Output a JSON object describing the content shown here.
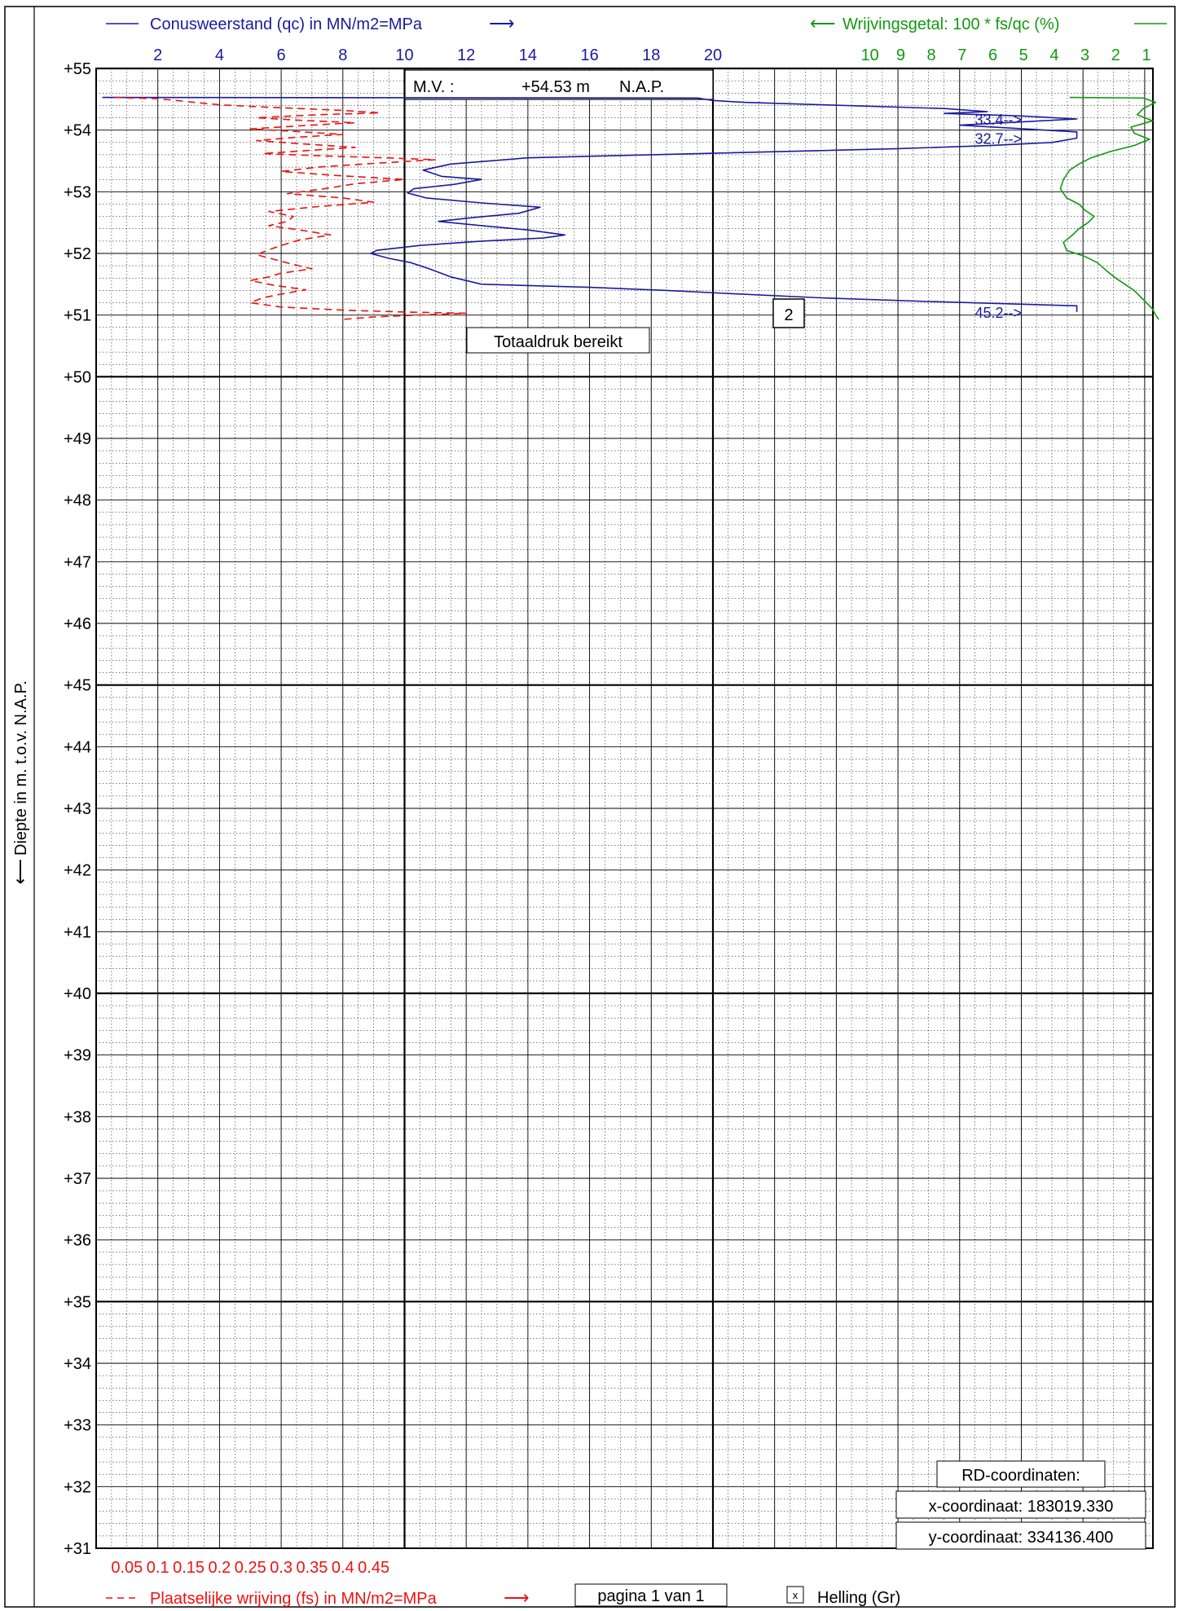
{
  "header": {
    "qc_title": "Conusweerstand (qc) in MN/m2=MPa",
    "rf_title": "Wrijvingsgetal: 100 * fs/qc (%)"
  },
  "footer": {
    "fs_title": "Plaatselijke wrijving (fs) in MN/m2=MPa",
    "page_label": "pagina 1 van 1",
    "helling_label": "Helling (Gr)",
    "helling_check": "x"
  },
  "y_axis_label": "Diepte in m. t.o.v. N.A.P.",
  "info": {
    "mv_label": "M.V. :",
    "mv_value": "+54.53 m",
    "mv_unit": "N.A.P.",
    "totaldruk": "Totaaldruk bereikt",
    "marker": "2",
    "rd_title": "RD-coordinaten:",
    "x_coord": "x-coordinaat: 183019.330",
    "y_coord": "y-coordinaat: 334136.400"
  },
  "colors": {
    "qc": "#1a1aa0",
    "fs": "#ee1111",
    "rf": "#119911",
    "grid": "#000000"
  },
  "chart_data": {
    "type": "line",
    "y_range": [
      31,
      55
    ],
    "y_ticks": [
      "+55",
      "+54",
      "+53",
      "+52",
      "+51",
      "+50",
      "+49",
      "+48",
      "+47",
      "+46",
      "+45",
      "+44",
      "+43",
      "+42",
      "+41",
      "+40",
      "+39",
      "+38",
      "+37",
      "+36",
      "+35",
      "+34",
      "+33",
      "+32",
      "+31"
    ],
    "qc_axis": {
      "range": [
        0,
        34
      ],
      "ticks": [
        "2",
        "4",
        "6",
        "8",
        "10",
        "12",
        "14",
        "16",
        "18",
        "20"
      ]
    },
    "fs_axis": {
      "range": [
        0,
        0.85
      ],
      "ticks": [
        "0.05",
        "0.1",
        "0.15",
        "0.2",
        "0.25",
        "0.3",
        "0.35",
        "0.4",
        "0.45"
      ]
    },
    "rf_axis": {
      "ticks": [
        "10",
        "9",
        "8",
        "7",
        "6",
        "5",
        "4",
        "3",
        "2",
        "1"
      ]
    },
    "overflow_labels": [
      {
        "text": "33.4-->",
        "depth": 54.18
      },
      {
        "text": "32.7-->",
        "depth": 53.87
      },
      {
        "text": "45.2-->",
        "depth": 51.05
      }
    ],
    "series": [
      {
        "key": "qc",
        "points": [
          [
            0.2,
            54.53
          ],
          [
            19.5,
            54.52
          ],
          [
            20,
            54.48
          ],
          [
            21,
            54.45
          ],
          [
            27.5,
            54.35
          ],
          [
            28.9,
            54.3
          ],
          [
            27.5,
            54.27
          ],
          [
            30,
            54.23
          ],
          [
            33.4,
            54.18
          ],
          [
            28,
            54.08
          ],
          [
            33,
            53.97
          ],
          [
            32.7,
            53.87
          ],
          [
            31,
            53.8
          ],
          [
            29,
            53.75
          ],
          [
            26,
            53.7
          ],
          [
            22,
            53.65
          ],
          [
            18,
            53.6
          ],
          [
            14,
            53.55
          ],
          [
            11.5,
            53.45
          ],
          [
            10.6,
            53.35
          ],
          [
            11.2,
            53.25
          ],
          [
            12.5,
            53.2
          ],
          [
            11.6,
            53.12
          ],
          [
            10.3,
            53.05
          ],
          [
            10.1,
            52.98
          ],
          [
            10.7,
            52.9
          ],
          [
            12.5,
            52.82
          ],
          [
            14.4,
            52.75
          ],
          [
            13.7,
            52.65
          ],
          [
            12.2,
            52.58
          ],
          [
            11.1,
            52.52
          ],
          [
            12.5,
            52.45
          ],
          [
            14,
            52.38
          ],
          [
            15.2,
            52.3
          ],
          [
            14.5,
            52.25
          ],
          [
            12.5,
            52.2
          ],
          [
            10.5,
            52.13
          ],
          [
            9.1,
            52.05
          ],
          [
            8.9,
            52.0
          ],
          [
            9.5,
            51.92
          ],
          [
            10.2,
            51.85
          ],
          [
            10.8,
            51.75
          ],
          [
            11.5,
            51.62
          ],
          [
            12.5,
            51.5
          ],
          [
            16,
            51.45
          ],
          [
            18.5,
            51.4
          ],
          [
            20.5,
            51.35
          ],
          [
            23.5,
            51.28
          ],
          [
            27,
            51.22
          ],
          [
            33,
            51.15
          ],
          [
            38,
            51.1
          ],
          [
            45.2,
            51.05
          ]
        ]
      },
      {
        "key": "fs",
        "points": [
          [
            0.03,
            54.53
          ],
          [
            0.1,
            54.51
          ],
          [
            0.13,
            54.48
          ],
          [
            0.17,
            54.44
          ],
          [
            0.2,
            54.41
          ],
          [
            0.26,
            54.38
          ],
          [
            0.33,
            54.35
          ],
          [
            0.4,
            54.32
          ],
          [
            0.46,
            54.28
          ],
          [
            0.36,
            54.25
          ],
          [
            0.26,
            54.2
          ],
          [
            0.33,
            54.16
          ],
          [
            0.42,
            54.12
          ],
          [
            0.33,
            54.07
          ],
          [
            0.25,
            54.02
          ],
          [
            0.32,
            53.98
          ],
          [
            0.4,
            53.93
          ],
          [
            0.32,
            53.88
          ],
          [
            0.26,
            53.83
          ],
          [
            0.33,
            53.78
          ],
          [
            0.42,
            53.72
          ],
          [
            0.33,
            53.66
          ],
          [
            0.27,
            53.62
          ],
          [
            0.37,
            53.58
          ],
          [
            0.47,
            53.55
          ],
          [
            0.55,
            53.52
          ],
          [
            0.45,
            53.46
          ],
          [
            0.36,
            53.4
          ],
          [
            0.3,
            53.33
          ],
          [
            0.38,
            53.27
          ],
          [
            0.5,
            53.2
          ],
          [
            0.42,
            53.13
          ],
          [
            0.37,
            53.05
          ],
          [
            0.31,
            52.97
          ],
          [
            0.4,
            52.9
          ],
          [
            0.45,
            52.83
          ],
          [
            0.36,
            52.76
          ],
          [
            0.28,
            52.68
          ],
          [
            0.32,
            52.6
          ],
          [
            0.31,
            52.52
          ],
          [
            0.28,
            52.45
          ],
          [
            0.33,
            52.38
          ],
          [
            0.38,
            52.3
          ],
          [
            0.33,
            52.22
          ],
          [
            0.3,
            52.13
          ],
          [
            0.28,
            52.06
          ],
          [
            0.26,
            51.98
          ],
          [
            0.29,
            51.9
          ],
          [
            0.32,
            51.82
          ],
          [
            0.35,
            51.75
          ],
          [
            0.3,
            51.68
          ],
          [
            0.28,
            51.62
          ],
          [
            0.25,
            51.56
          ],
          [
            0.29,
            51.48
          ],
          [
            0.34,
            51.41
          ],
          [
            0.3,
            51.34
          ],
          [
            0.27,
            51.28
          ],
          [
            0.25,
            51.2
          ],
          [
            0.3,
            51.13
          ],
          [
            0.4,
            51.08
          ],
          [
            0.5,
            51.05
          ],
          [
            0.6,
            51.03
          ],
          [
            0.52,
            51.0
          ],
          [
            0.45,
            50.97
          ],
          [
            0.4,
            50.93
          ]
        ]
      },
      {
        "key": "rf",
        "points": [
          [
            3.5,
            54.53
          ],
          [
            1.1,
            54.52
          ],
          [
            0.7,
            54.45
          ],
          [
            1.1,
            54.35
          ],
          [
            1.3,
            54.25
          ],
          [
            0.8,
            54.15
          ],
          [
            1.5,
            54.05
          ],
          [
            1.4,
            53.95
          ],
          [
            0.9,
            53.85
          ],
          [
            1.4,
            53.75
          ],
          [
            2.2,
            53.65
          ],
          [
            2.8,
            53.55
          ],
          [
            3.2,
            53.45
          ],
          [
            3.5,
            53.35
          ],
          [
            3.7,
            53.2
          ],
          [
            3.8,
            53.05
          ],
          [
            3.6,
            52.9
          ],
          [
            3.2,
            52.8
          ],
          [
            3.0,
            52.7
          ],
          [
            2.7,
            52.6
          ],
          [
            2.9,
            52.5
          ],
          [
            3.2,
            52.4
          ],
          [
            3.4,
            52.3
          ],
          [
            3.7,
            52.18
          ],
          [
            3.6,
            52.05
          ],
          [
            3.0,
            51.95
          ],
          [
            2.6,
            51.85
          ],
          [
            2.3,
            51.72
          ],
          [
            2.0,
            51.6
          ],
          [
            1.7,
            51.5
          ],
          [
            1.4,
            51.4
          ],
          [
            1.2,
            51.3
          ],
          [
            1.0,
            51.2
          ],
          [
            0.8,
            51.1
          ],
          [
            0.7,
            51.0
          ],
          [
            0.6,
            50.93
          ]
        ]
      }
    ]
  }
}
